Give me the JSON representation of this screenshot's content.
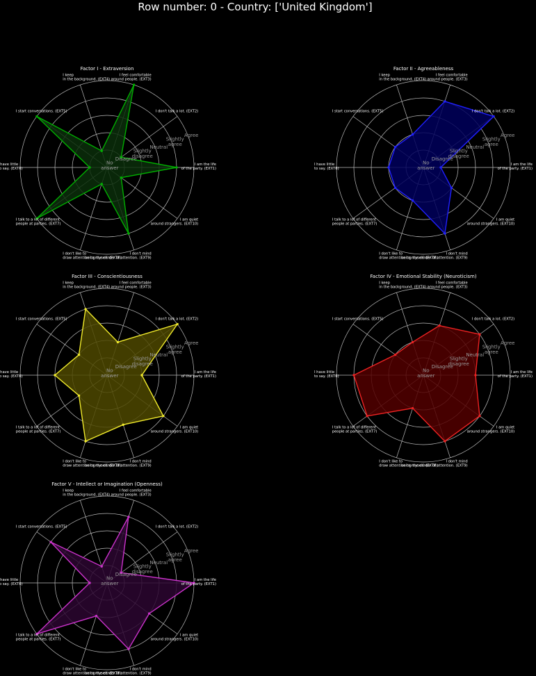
{
  "suptitle": "Row number: 0 - Country: ['United Kingdom']",
  "axis_labels": [
    "I am the life\nof the party. (EXT1)",
    "I don't talk a lot. (EXT2)",
    "I feel comfortable\naround people. (EXT3)",
    "I keep\nin the background. (EXT4)",
    "I start conversations. (EXT5)",
    "I have little\nto say. (EXT6)",
    "I talk to a lot of different\npeople at parties. (EXT7)",
    "I don't like to\ndraw attention to myself. (EXT8)",
    "I don't mind\nbeing the center of attention. (EXT9)",
    "I am quiet\naround strangers. (EXT10)"
  ],
  "radial_labels": [
    "No\nanswer",
    "Disagree",
    "Slightly\ndisagree",
    "Neutral",
    "Slightly\nagree",
    "Agree"
  ],
  "chart_data": [
    {
      "type": "radar",
      "title": "Factor I - Extraversion",
      "color": "#00b000",
      "fill": "#0a2e0a",
      "rlim": [
        0,
        5
      ],
      "values": [
        4,
        1,
        5,
        1,
        5,
        1,
        5,
        1,
        4,
        1
      ]
    },
    {
      "type": "radar",
      "title": "Factor II - Agreeableness",
      "color": "#2020ff",
      "fill": "#00005c",
      "rlim": [
        0,
        5
      ],
      "values": [
        1,
        5,
        4,
        2,
        2,
        2,
        2,
        2,
        4,
        2
      ]
    },
    {
      "type": "radar",
      "title": "Factor III - Conscientiousness",
      "color": "#f2ec2c",
      "fill": "#4d4800",
      "rlim": [
        0,
        5
      ],
      "values": [
        2,
        5,
        2,
        4,
        2,
        3,
        2,
        4,
        3,
        4
      ]
    },
    {
      "type": "radar",
      "title": "Factor IV - Emotional Stability (Neuroticism)",
      "color": "#ee2222",
      "fill": "#520000",
      "rlim": [
        0,
        5
      ],
      "values": [
        3,
        4,
        3,
        2,
        2,
        4,
        4,
        2,
        4,
        4
      ]
    },
    {
      "type": "radar",
      "title": "Factor V - Intellect or Imagination (Openness)",
      "color": "#cc33cc",
      "fill": "#2c0630",
      "rlim": [
        0,
        5
      ],
      "values": [
        5,
        1,
        4,
        1,
        4,
        1,
        5,
        2,
        4,
        3
      ]
    }
  ]
}
